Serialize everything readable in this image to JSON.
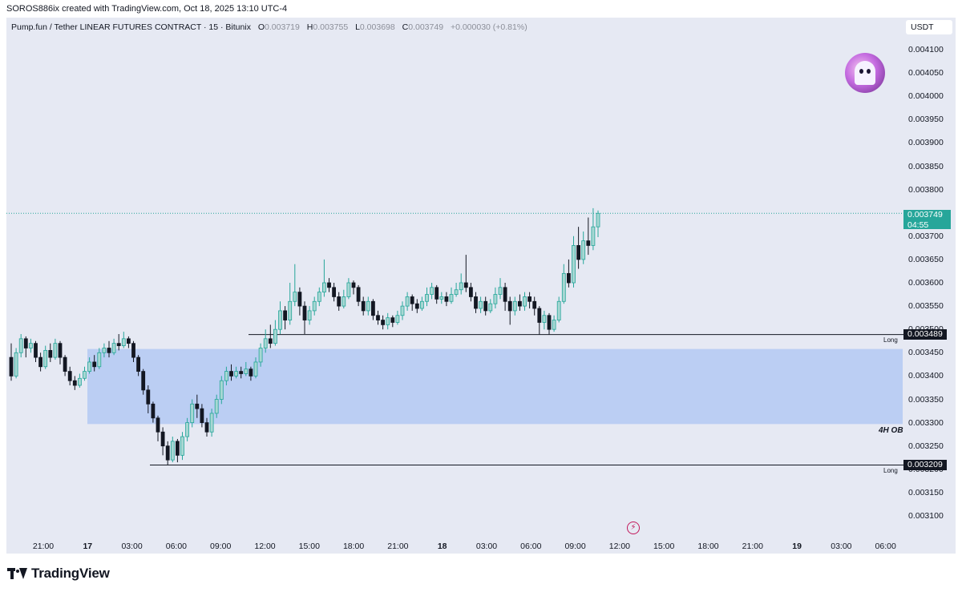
{
  "attribution": "SOROS886ix created with TradingView.com, Oct 18, 2025 13:10 UTC-4",
  "legend": {
    "symbol": "Pump.fun / Tether LINEAR FUTURES CONTRACT · 15 · Bitunix",
    "open_key": "O",
    "open": "0.003719",
    "high_key": "H",
    "high": "0.003755",
    "low_key": "L",
    "low": "0.003698",
    "close_key": "C",
    "close": "0.003749",
    "change": "+0.000030 (+0.81%)"
  },
  "currency": "USDT",
  "brand": "TradingView",
  "icons": {
    "avatar": "ghost-avatar-icon",
    "flash": "lightning-icon"
  },
  "colors": {
    "up": "#26a69a",
    "down": "#131722",
    "zone": "#b6cbf3",
    "background": "#e6e9f3"
  },
  "chart_data": {
    "type": "candlestick",
    "ylim": [
      0.003075,
      0.004145
    ],
    "y_ticks": [
      "0.004100",
      "0.004050",
      "0.004000",
      "0.003950",
      "0.003900",
      "0.003850",
      "0.003800",
      "0.003700",
      "0.003650",
      "0.003600",
      "0.003550",
      "0.003500",
      "0.003450",
      "0.003400",
      "0.003350",
      "0.003300",
      "0.003250",
      "0.003200",
      "0.003150",
      "0.003100"
    ],
    "x_ticks": [
      {
        "label": "21:00",
        "bold": false
      },
      {
        "label": "17",
        "bold": true
      },
      {
        "label": "03:00",
        "bold": false
      },
      {
        "label": "06:00",
        "bold": false
      },
      {
        "label": "09:00",
        "bold": false
      },
      {
        "label": "12:00",
        "bold": false
      },
      {
        "label": "15:00",
        "bold": false
      },
      {
        "label": "18:00",
        "bold": false
      },
      {
        "label": "21:00",
        "bold": false
      },
      {
        "label": "18",
        "bold": true
      },
      {
        "label": "03:00",
        "bold": false
      },
      {
        "label": "06:00",
        "bold": false
      },
      {
        "label": "09:00",
        "bold": false
      },
      {
        "label": "12:00",
        "bold": false
      },
      {
        "label": "15:00",
        "bold": false
      },
      {
        "label": "18:00",
        "bold": false
      },
      {
        "label": "21:00",
        "bold": false
      },
      {
        "label": "19",
        "bold": true
      },
      {
        "label": "03:00",
        "bold": false
      },
      {
        "label": "06:00",
        "bold": false
      }
    ],
    "current_price": "0.003749",
    "countdown": "04:55",
    "zone": {
      "label": "4H OB",
      "top": 0.003458,
      "bottom": 0.003297
    },
    "levels": [
      {
        "value": 0.003489,
        "label": "0.003489",
        "note": "Long"
      },
      {
        "value": 0.003209,
        "label": "0.003209",
        "note": "Long"
      }
    ],
    "candles": [
      [
        0.00344,
        0.0034,
        0.00347,
        0.00339
      ],
      [
        0.0034,
        0.00345,
        0.00346,
        0.003395
      ],
      [
        0.00345,
        0.00348,
        0.00349,
        0.00344
      ],
      [
        0.00348,
        0.00346,
        0.003485,
        0.00344
      ],
      [
        0.00346,
        0.00347,
        0.00348,
        0.00345
      ],
      [
        0.00347,
        0.00344,
        0.003475,
        0.00343
      ],
      [
        0.00344,
        0.00342,
        0.00345,
        0.00341
      ],
      [
        0.00342,
        0.003455,
        0.003465,
        0.003415
      ],
      [
        0.003455,
        0.00344,
        0.00347,
        0.00343
      ],
      [
        0.00344,
        0.00347,
        0.00348,
        0.003435
      ],
      [
        0.00347,
        0.00344,
        0.003475,
        0.003425
      ],
      [
        0.00344,
        0.00341,
        0.003445,
        0.0034
      ],
      [
        0.00341,
        0.00339,
        0.00342,
        0.00338
      ],
      [
        0.00339,
        0.00338,
        0.0034,
        0.00337
      ],
      [
        0.00338,
        0.003395,
        0.003405,
        0.003375
      ],
      [
        0.003395,
        0.00341,
        0.00342,
        0.00339
      ],
      [
        0.00341,
        0.00343,
        0.00344,
        0.003405
      ],
      [
        0.00343,
        0.00342,
        0.003445,
        0.00341
      ],
      [
        0.00342,
        0.00345,
        0.00346,
        0.003415
      ],
      [
        0.00345,
        0.00346,
        0.00347,
        0.00344
      ],
      [
        0.00346,
        0.00345,
        0.003475,
        0.00344
      ],
      [
        0.00345,
        0.00347,
        0.00348,
        0.003445
      ],
      [
        0.00347,
        0.003465,
        0.00349,
        0.003455
      ],
      [
        0.003465,
        0.00348,
        0.003495,
        0.00346
      ],
      [
        0.00348,
        0.00347,
        0.003485,
        0.00346
      ],
      [
        0.00347,
        0.00344,
        0.003475,
        0.00343
      ],
      [
        0.00344,
        0.00341,
        0.003445,
        0.0034
      ],
      [
        0.00341,
        0.00337,
        0.003415,
        0.00336
      ],
      [
        0.00337,
        0.00334,
        0.00338,
        0.00332
      ],
      [
        0.00334,
        0.00331,
        0.003345,
        0.0033
      ],
      [
        0.00331,
        0.00328,
        0.003315,
        0.00326
      ],
      [
        0.00328,
        0.00325,
        0.00329,
        0.00323
      ],
      [
        0.00325,
        0.00322,
        0.00326,
        0.003209
      ],
      [
        0.00322,
        0.00326,
        0.00327,
        0.003215
      ],
      [
        0.00326,
        0.00323,
        0.003265,
        0.003215
      ],
      [
        0.00323,
        0.00327,
        0.00328,
        0.00322
      ],
      [
        0.00327,
        0.0033,
        0.00331,
        0.00326
      ],
      [
        0.0033,
        0.00334,
        0.00335,
        0.00329
      ],
      [
        0.00334,
        0.00333,
        0.00336,
        0.00331
      ],
      [
        0.00333,
        0.0033,
        0.00334,
        0.00329
      ],
      [
        0.0033,
        0.00328,
        0.00331,
        0.00327
      ],
      [
        0.00328,
        0.00332,
        0.00333,
        0.00327
      ],
      [
        0.00332,
        0.00335,
        0.00336,
        0.00331
      ],
      [
        0.00335,
        0.00339,
        0.0034,
        0.00334
      ],
      [
        0.00339,
        0.00341,
        0.00342,
        0.00338
      ],
      [
        0.00341,
        0.0034,
        0.003425,
        0.00339
      ],
      [
        0.0034,
        0.00341,
        0.00342,
        0.003395
      ],
      [
        0.00341,
        0.003405,
        0.00342,
        0.003395
      ],
      [
        0.003405,
        0.003415,
        0.00343,
        0.0034
      ],
      [
        0.003415,
        0.0034,
        0.00342,
        0.00339
      ],
      [
        0.0034,
        0.00343,
        0.00344,
        0.003395
      ],
      [
        0.00343,
        0.00346,
        0.00347,
        0.00342
      ],
      [
        0.00346,
        0.00348,
        0.0035,
        0.00345
      ],
      [
        0.00348,
        0.00347,
        0.00351,
        0.00346
      ],
      [
        0.00347,
        0.0035,
        0.00352,
        0.003465
      ],
      [
        0.0035,
        0.00354,
        0.00356,
        0.00349
      ],
      [
        0.00354,
        0.00352,
        0.00355,
        0.0035
      ],
      [
        0.00352,
        0.00356,
        0.0036,
        0.00351
      ],
      [
        0.00356,
        0.00358,
        0.00364,
        0.00355
      ],
      [
        0.00358,
        0.00355,
        0.00359,
        0.00353
      ],
      [
        0.00355,
        0.00352,
        0.00356,
        0.00349
      ],
      [
        0.00352,
        0.00354,
        0.00355,
        0.00351
      ],
      [
        0.00354,
        0.00356,
        0.00357,
        0.00353
      ],
      [
        0.00356,
        0.00358,
        0.00359,
        0.00355
      ],
      [
        0.00358,
        0.0036,
        0.00365,
        0.00357
      ],
      [
        0.0036,
        0.00359,
        0.00361,
        0.00358
      ],
      [
        0.00359,
        0.00357,
        0.0036,
        0.00356
      ],
      [
        0.00357,
        0.00355,
        0.00358,
        0.00354
      ],
      [
        0.00355,
        0.00357,
        0.003585,
        0.003545
      ],
      [
        0.00357,
        0.0036,
        0.00361,
        0.003565
      ],
      [
        0.0036,
        0.00359,
        0.003605,
        0.003575
      ],
      [
        0.00359,
        0.00356,
        0.003595,
        0.00355
      ],
      [
        0.00356,
        0.00354,
        0.00357,
        0.00353
      ],
      [
        0.00354,
        0.00356,
        0.00357,
        0.00353
      ],
      [
        0.00356,
        0.00353,
        0.003565,
        0.00352
      ],
      [
        0.00353,
        0.00352,
        0.00354,
        0.00351
      ],
      [
        0.00352,
        0.00351,
        0.00353,
        0.0035
      ],
      [
        0.00351,
        0.003525,
        0.003535,
        0.0035
      ],
      [
        0.003525,
        0.003515,
        0.00353,
        0.003505
      ],
      [
        0.003515,
        0.00353,
        0.00354,
        0.00351
      ],
      [
        0.00353,
        0.00355,
        0.00356,
        0.00352
      ],
      [
        0.00355,
        0.00357,
        0.00358,
        0.00354
      ],
      [
        0.00357,
        0.003555,
        0.003575,
        0.00354
      ],
      [
        0.003555,
        0.003545,
        0.003565,
        0.003535
      ],
      [
        0.003545,
        0.00356,
        0.00357,
        0.00354
      ],
      [
        0.00356,
        0.003575,
        0.00359,
        0.00355
      ],
      [
        0.003575,
        0.00359,
        0.0036,
        0.003565
      ],
      [
        0.00359,
        0.003565,
        0.003595,
        0.003555
      ],
      [
        0.003565,
        0.00357,
        0.00358,
        0.003555
      ],
      [
        0.00357,
        0.00356,
        0.00358,
        0.00355
      ],
      [
        0.00356,
        0.003575,
        0.00359,
        0.003555
      ],
      [
        0.003575,
        0.003585,
        0.0036,
        0.00357
      ],
      [
        0.003585,
        0.0036,
        0.00362,
        0.003575
      ],
      [
        0.0036,
        0.00359,
        0.00366,
        0.00358
      ],
      [
        0.00359,
        0.00357,
        0.0036,
        0.00356
      ],
      [
        0.00357,
        0.003545,
        0.00358,
        0.003535
      ],
      [
        0.003545,
        0.00356,
        0.00357,
        0.003535
      ],
      [
        0.00356,
        0.00354,
        0.00357,
        0.00353
      ],
      [
        0.00354,
        0.003555,
        0.003565,
        0.003535
      ],
      [
        0.003555,
        0.003575,
        0.00359,
        0.003545
      ],
      [
        0.003575,
        0.00359,
        0.00361,
        0.003565
      ],
      [
        0.00359,
        0.00356,
        0.0036,
        0.00354
      ],
      [
        0.00356,
        0.00354,
        0.00357,
        0.00351
      ],
      [
        0.00354,
        0.00356,
        0.00357,
        0.00353
      ],
      [
        0.00356,
        0.00355,
        0.003575,
        0.00354
      ],
      [
        0.00355,
        0.00357,
        0.00358,
        0.00354
      ],
      [
        0.00357,
        0.00356,
        0.00358,
        0.003545
      ],
      [
        0.00356,
        0.003545,
        0.00357,
        0.00353
      ],
      [
        0.003545,
        0.003515,
        0.00355,
        0.003489
      ],
      [
        0.003515,
        0.00353,
        0.00354,
        0.0035
      ],
      [
        0.00353,
        0.0035,
        0.003535,
        0.003489
      ],
      [
        0.0035,
        0.00352,
        0.00353,
        0.003495
      ],
      [
        0.00352,
        0.00356,
        0.00357,
        0.003515
      ],
      [
        0.00356,
        0.00362,
        0.00364,
        0.003555
      ],
      [
        0.00362,
        0.0036,
        0.00365,
        0.00359
      ],
      [
        0.0036,
        0.00368,
        0.0037,
        0.00359
      ],
      [
        0.00368,
        0.00365,
        0.00372,
        0.00363
      ],
      [
        0.00365,
        0.00369,
        0.00371,
        0.00364
      ],
      [
        0.00369,
        0.00368,
        0.00374,
        0.00366
      ],
      [
        0.00368,
        0.00372,
        0.00376,
        0.00367
      ],
      [
        0.00372,
        0.003749,
        0.003755,
        0.003698
      ]
    ]
  }
}
